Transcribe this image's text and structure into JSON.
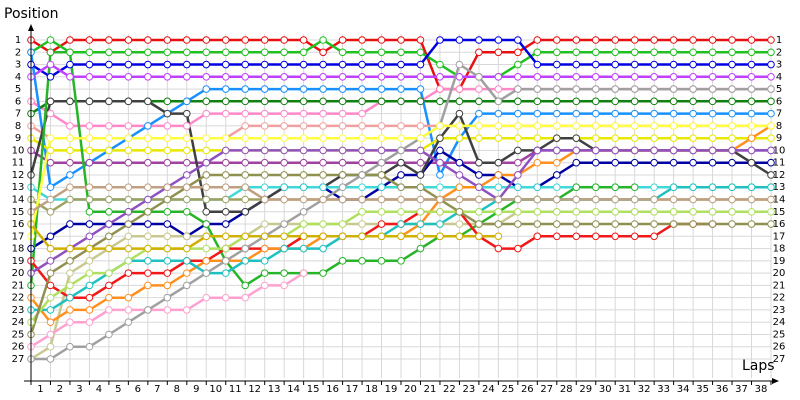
{
  "chart_data": {
    "type": "line",
    "y_label": "Position",
    "x_label": "Laps",
    "x": [
      0,
      1,
      2,
      3,
      4,
      5,
      6,
      7,
      8,
      9,
      10,
      11,
      12,
      13,
      14,
      15,
      16,
      17,
      18,
      19,
      20,
      21,
      22,
      23,
      24,
      25,
      26,
      27,
      28,
      29,
      30,
      31,
      32,
      33,
      34,
      35,
      36,
      37,
      38
    ],
    "xlim": [
      0,
      38
    ],
    "xticks": [
      1,
      2,
      3,
      4,
      5,
      6,
      7,
      8,
      9,
      10,
      11,
      12,
      13,
      14,
      15,
      16,
      17,
      18,
      19,
      20,
      21,
      22,
      23,
      24,
      25,
      26,
      27,
      28,
      29,
      30,
      31,
      32,
      33,
      34,
      35,
      36,
      37,
      38
    ],
    "ylim": [
      1,
      27
    ],
    "yticks": [
      1,
      2,
      3,
      4,
      5,
      6,
      7,
      8,
      9,
      10,
      11,
      12,
      13,
      14,
      15,
      16,
      17,
      18,
      19,
      20,
      21,
      22,
      23,
      24,
      25,
      26,
      27
    ],
    "y_inverted": true,
    "grid": true,
    "series": [
      {
        "color": "#e81010",
        "values": [
          1,
          2,
          1,
          1,
          1,
          1,
          1,
          1,
          1,
          1,
          1,
          1,
          1,
          1,
          1,
          2,
          1,
          1,
          1,
          1,
          1,
          5,
          5,
          2,
          2,
          2,
          1,
          1,
          1,
          1,
          1,
          1,
          1,
          1,
          1,
          1,
          1,
          1,
          1
        ]
      },
      {
        "color": "#20c020",
        "values": [
          2,
          1,
          2,
          2,
          2,
          2,
          2,
          2,
          2,
          2,
          2,
          2,
          2,
          2,
          2,
          1,
          2,
          2,
          2,
          2,
          2,
          3,
          4,
          4,
          4,
          3,
          2,
          2,
          2,
          2,
          2,
          2,
          2,
          2,
          2,
          2,
          2,
          2,
          2
        ]
      },
      {
        "color": "#0000e0",
        "values": [
          3,
          4,
          3,
          3,
          3,
          3,
          3,
          3,
          3,
          3,
          3,
          3,
          3,
          3,
          3,
          3,
          3,
          3,
          3,
          3,
          3,
          1,
          1,
          1,
          1,
          1,
          3,
          3,
          3,
          3,
          3,
          3,
          3,
          3,
          3,
          3,
          3,
          3,
          3
        ]
      },
      {
        "color": "#c040ff",
        "values": [
          4,
          3,
          4,
          4,
          4,
          4,
          4,
          4,
          4,
          4,
          4,
          4,
          4,
          4,
          4,
          4,
          4,
          4,
          4,
          4,
          4,
          4,
          4,
          4,
          4,
          4,
          4,
          4,
          4,
          4,
          4,
          4,
          4,
          4,
          4,
          4,
          4,
          4,
          4
        ]
      },
      {
        "color": "#ff88c8",
        "values": [
          6,
          7,
          8,
          8,
          8,
          8,
          8,
          8,
          8,
          7,
          7,
          7,
          7,
          7,
          7,
          7,
          7,
          7,
          6,
          6,
          6,
          5,
          5,
          5,
          5,
          5,
          5,
          5,
          5,
          5,
          5,
          5,
          5,
          5,
          5,
          5,
          5,
          5,
          5
        ]
      },
      {
        "color": "#108010",
        "values": [
          7,
          6,
          6,
          6,
          6,
          6,
          6,
          6,
          6,
          6,
          6,
          6,
          6,
          6,
          6,
          6,
          6,
          6,
          6,
          6,
          6,
          6,
          6,
          6,
          6,
          6,
          6,
          6,
          6,
          6,
          6,
          6,
          6,
          6,
          6,
          6,
          6,
          6,
          6
        ]
      },
      {
        "color": "#1890ff",
        "values": [
          2,
          13,
          12,
          11,
          10,
          9,
          8,
          7,
          6,
          5,
          5,
          5,
          5,
          5,
          5,
          5,
          5,
          5,
          5,
          5,
          5,
          12,
          9,
          7,
          7,
          7,
          7,
          7,
          7,
          7,
          7,
          7,
          7,
          7,
          7,
          7,
          7,
          7,
          7
        ]
      },
      {
        "color": "#f0a0a0",
        "values": [
          8,
          9,
          9,
          9,
          9,
          9,
          9,
          9,
          9,
          9,
          9,
          8,
          8,
          8,
          8,
          8,
          8,
          8,
          8,
          8,
          8,
          8,
          8,
          8,
          8,
          8,
          8,
          8,
          8,
          8,
          8,
          8,
          8,
          8,
          8,
          8,
          8,
          8,
          8
        ]
      },
      {
        "color": "#e8e800",
        "values": [
          9,
          10,
          10,
          10,
          10,
          10,
          10,
          10,
          10,
          10,
          10,
          10,
          10,
          10,
          10,
          10,
          10,
          10,
          10,
          10,
          10,
          9,
          9,
          9,
          9,
          9,
          9,
          9,
          9,
          9,
          9,
          9,
          9,
          9,
          9,
          9,
          9,
          9,
          9
        ]
      },
      {
        "color": "#a040a0",
        "values": [
          10,
          11,
          11,
          11,
          11,
          11,
          11,
          11,
          11,
          11,
          11,
          11,
          11,
          11,
          11,
          11,
          11,
          11,
          11,
          11,
          11,
          11,
          11,
          11,
          11,
          11,
          10,
          10,
          10,
          10,
          10,
          10,
          10,
          10,
          10,
          10,
          10,
          10,
          10
        ]
      },
      {
        "color": "#0000a0",
        "values": [
          18,
          17,
          16,
          16,
          16,
          16,
          16,
          16,
          17,
          16,
          16,
          15,
          14,
          13,
          13,
          13,
          14,
          14,
          13,
          12,
          12,
          10,
          11,
          12,
          12,
          13,
          13,
          12,
          11,
          11,
          11,
          11,
          11,
          11,
          11,
          11,
          11,
          11,
          11
        ]
      },
      {
        "color": "#404040",
        "values": [
          12,
          6,
          6,
          6,
          6,
          6,
          6,
          7,
          7,
          15,
          15,
          15,
          14,
          13,
          13,
          13,
          12,
          12,
          12,
          11,
          12,
          9,
          7,
          11,
          11,
          10,
          10,
          9,
          9,
          10,
          10,
          10,
          10,
          10,
          10,
          10,
          10,
          11,
          12
        ]
      },
      {
        "color": "#40d8d8",
        "values": [
          13,
          14,
          14,
          14,
          14,
          14,
          14,
          14,
          14,
          14,
          14,
          13,
          13,
          13,
          13,
          13,
          13,
          13,
          13,
          13,
          13,
          13,
          13,
          13,
          13,
          13,
          13,
          13,
          13,
          13,
          13,
          13,
          13,
          13,
          13,
          13,
          13,
          13,
          13
        ]
      },
      {
        "color": "#a0a060",
        "values": [
          14,
          15,
          14,
          14,
          14,
          14,
          14,
          14,
          14,
          14,
          14,
          14,
          14,
          14,
          14,
          14,
          14,
          14,
          14,
          14,
          14,
          14,
          14,
          14,
          14,
          14,
          14,
          14,
          14,
          14,
          14,
          14,
          14,
          14,
          14,
          14,
          14,
          14,
          14
        ]
      },
      {
        "color": "#28b428",
        "values": [
          21,
          2,
          2,
          15,
          15,
          15,
          15,
          15,
          15,
          16,
          19,
          21,
          20,
          20,
          20,
          20,
          19,
          19,
          19,
          19,
          18,
          17,
          17,
          16,
          15,
          14,
          14,
          14,
          13,
          13,
          13,
          13,
          null,
          null,
          null,
          null,
          null,
          null,
          null
        ]
      },
      {
        "color": "#c8c890",
        "values": [
          27,
          26,
          20,
          19,
          18,
          17,
          17,
          17,
          17,
          17,
          17,
          17,
          16,
          16,
          16,
          16,
          16,
          16,
          16,
          16,
          16,
          16,
          16,
          16,
          16,
          15,
          15,
          15,
          15,
          15,
          15,
          15,
          15,
          15,
          15,
          15,
          15,
          null,
          null
        ]
      },
      {
        "color": "#f01818",
        "values": [
          19,
          21,
          22,
          22,
          21,
          20,
          20,
          20,
          19,
          19,
          18,
          18,
          18,
          18,
          17,
          17,
          17,
          17,
          16,
          16,
          15,
          15,
          15,
          17,
          18,
          18,
          17,
          17,
          17,
          17,
          17,
          17,
          17,
          16,
          16,
          16,
          null,
          null,
          null
        ]
      },
      {
        "color": "#ffa0d0",
        "values": [
          26,
          25,
          24,
          24,
          23,
          23,
          23,
          23,
          23,
          22,
          22,
          22,
          21,
          21,
          20,
          null,
          null,
          null,
          null,
          null,
          null,
          null,
          null,
          null,
          null,
          null,
          null,
          null,
          null,
          null,
          null,
          null,
          null,
          null,
          null,
          null,
          null,
          null,
          null
        ]
      },
      {
        "color": "#ff9020",
        "values": [
          22,
          24,
          23,
          23,
          22,
          22,
          21,
          21,
          20,
          19,
          19,
          19,
          18,
          18,
          18,
          17,
          17,
          17,
          17,
          17,
          16,
          14,
          13,
          13,
          12,
          12,
          11,
          11,
          10,
          10,
          10,
          10,
          10,
          10,
          10,
          10,
          10,
          9,
          8
        ]
      },
      {
        "color": "#20c0c0",
        "values": [
          23,
          23,
          22,
          21,
          20,
          19,
          19,
          19,
          19,
          20,
          20,
          19,
          19,
          18,
          18,
          18,
          17,
          17,
          17,
          16,
          16,
          16,
          15,
          15,
          14,
          14,
          14,
          14,
          14,
          14,
          14,
          14,
          14,
          13,
          13,
          13,
          13,
          13,
          13
        ]
      },
      {
        "color": "#b0e060",
        "values": [
          24,
          22,
          21,
          20,
          20,
          19,
          18,
          18,
          18,
          18,
          18,
          17,
          17,
          17,
          16,
          16,
          16,
          15,
          15,
          15,
          15,
          15,
          15,
          15,
          15,
          15,
          15,
          15,
          15,
          15,
          15,
          15,
          15,
          15,
          15,
          15,
          15,
          15,
          15
        ]
      },
      {
        "color": "#909050",
        "values": [
          25,
          20,
          19,
          18,
          17,
          16,
          15,
          14,
          13,
          12,
          12,
          12,
          12,
          12,
          12,
          12,
          12,
          12,
          12,
          13,
          13,
          14,
          15,
          16,
          16,
          16,
          16,
          16,
          16,
          16,
          16,
          16,
          16,
          16,
          16,
          16,
          16,
          16,
          16
        ]
      },
      {
        "color": "#9050c0",
        "values": [
          20,
          19,
          18,
          17,
          16,
          15,
          14,
          13,
          12,
          11,
          10,
          10,
          10,
          10,
          10,
          10,
          10,
          10,
          10,
          10,
          10,
          11,
          12,
          13,
          14,
          12,
          10,
          10,
          10,
          10,
          10,
          10,
          10,
          10,
          10,
          10,
          10,
          10,
          10
        ]
      },
      {
        "color": "#a0a0a0",
        "values": [
          27,
          27,
          26,
          26,
          25,
          24,
          23,
          22,
          21,
          20,
          19,
          18,
          17,
          16,
          15,
          14,
          13,
          12,
          11,
          10,
          9,
          8,
          3,
          4,
          6,
          5,
          5,
          5,
          5,
          5,
          5,
          5,
          5,
          5,
          5,
          5,
          5,
          5,
          5
        ]
      },
      {
        "color": "#ffff40",
        "values": [
          17,
          9,
          9,
          9,
          9,
          9,
          9,
          9,
          9,
          9,
          9,
          9,
          9,
          9,
          9,
          9,
          9,
          9,
          9,
          9,
          9,
          8,
          8,
          8,
          8,
          8,
          8,
          8,
          8,
          8,
          8,
          8,
          8,
          8,
          8,
          8,
          8,
          8,
          8
        ]
      },
      {
        "color": "#c0a080",
        "values": [
          15,
          14,
          13,
          13,
          13,
          13,
          13,
          13,
          13,
          13,
          13,
          13,
          14,
          14,
          14,
          14,
          14,
          14,
          14,
          14,
          14,
          14,
          14,
          14,
          14,
          14,
          14,
          14,
          14,
          14,
          14,
          14,
          14,
          14,
          14,
          14,
          14,
          14,
          14
        ]
      },
      {
        "color": "#d0b000",
        "values": [
          16,
          18,
          18,
          18,
          18,
          18,
          18,
          18,
          18,
          17,
          17,
          17,
          17,
          17,
          17,
          17,
          17,
          17,
          17,
          17,
          17,
          17,
          17,
          17,
          17,
          null,
          null,
          null,
          null,
          null,
          null,
          null,
          null,
          null,
          null,
          null,
          null,
          null,
          null
        ]
      }
    ]
  }
}
